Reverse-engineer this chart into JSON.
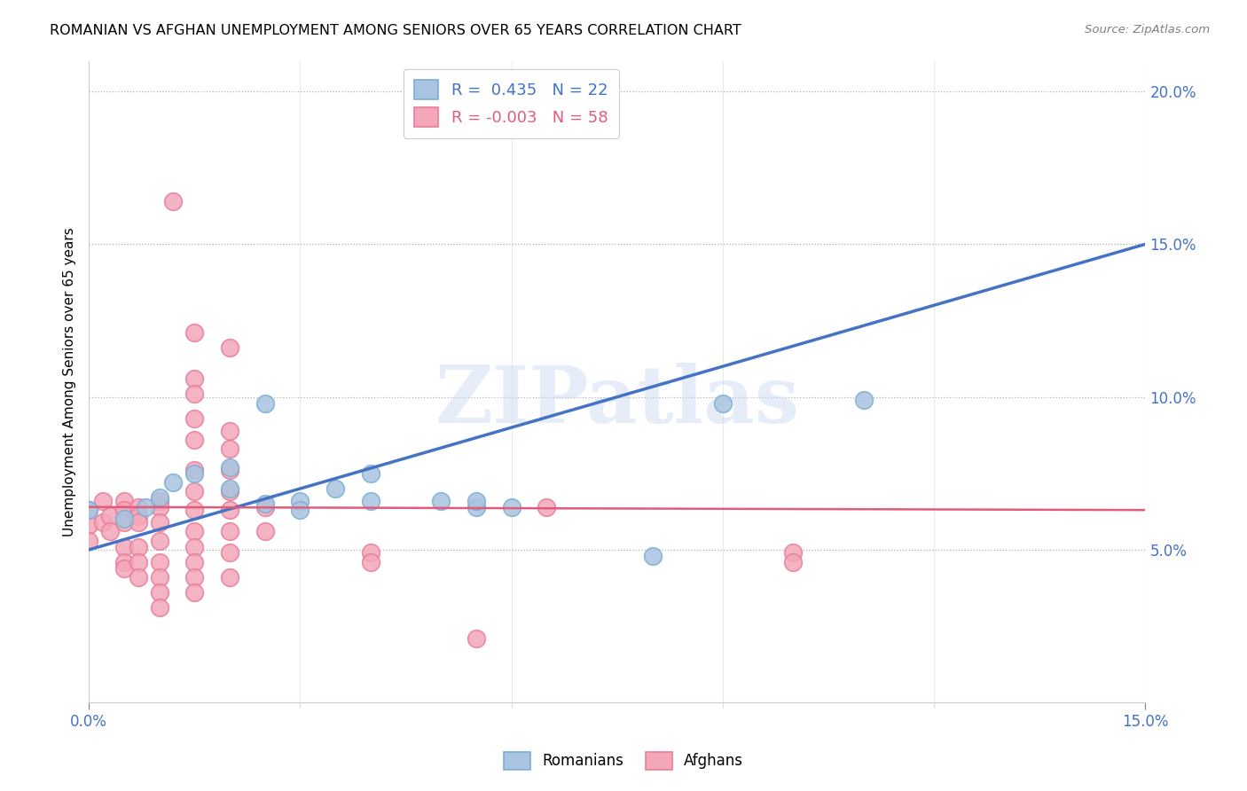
{
  "title": "ROMANIAN VS AFGHAN UNEMPLOYMENT AMONG SENIORS OVER 65 YEARS CORRELATION CHART",
  "source": "Source: ZipAtlas.com",
  "ylabel": "Unemployment Among Seniors over 65 years",
  "xlim": [
    0.0,
    0.15
  ],
  "ylim": [
    0.0,
    0.21
  ],
  "xticks_labeled": [
    0.0,
    0.15
  ],
  "xtick_labels": [
    "0.0%",
    "15.0%"
  ],
  "xticks_minor": [
    0.03,
    0.06,
    0.09,
    0.12
  ],
  "yticks_right": [
    0.05,
    0.1,
    0.15,
    0.2
  ],
  "ytick_right_labels": [
    "5.0%",
    "10.0%",
    "15.0%",
    "20.0%"
  ],
  "romanian_R": 0.435,
  "romanian_N": 22,
  "afghan_R": -0.003,
  "afghan_N": 58,
  "romanian_color": "#a8c4e0",
  "romanian_edge_color": "#7aafd4",
  "afghan_color": "#f4a7b9",
  "afghan_edge_color": "#e87d9a",
  "romanian_line_color": "#4472c4",
  "afghan_line_color": "#e05c7a",
  "watermark": "ZIPatlas",
  "romanian_points": [
    [
      0.0,
      0.063
    ],
    [
      0.005,
      0.06
    ],
    [
      0.008,
      0.064
    ],
    [
      0.01,
      0.067
    ],
    [
      0.012,
      0.072
    ],
    [
      0.015,
      0.075
    ],
    [
      0.02,
      0.07
    ],
    [
      0.02,
      0.077
    ],
    [
      0.025,
      0.098
    ],
    [
      0.025,
      0.065
    ],
    [
      0.03,
      0.066
    ],
    [
      0.03,
      0.063
    ],
    [
      0.035,
      0.07
    ],
    [
      0.04,
      0.075
    ],
    [
      0.04,
      0.066
    ],
    [
      0.05,
      0.066
    ],
    [
      0.055,
      0.064
    ],
    [
      0.055,
      0.066
    ],
    [
      0.06,
      0.064
    ],
    [
      0.08,
      0.048
    ],
    [
      0.09,
      0.098
    ],
    [
      0.11,
      0.099
    ]
  ],
  "afghan_points": [
    [
      0.0,
      0.063
    ],
    [
      0.0,
      0.058
    ],
    [
      0.0,
      0.053
    ],
    [
      0.002,
      0.066
    ],
    [
      0.002,
      0.059
    ],
    [
      0.003,
      0.061
    ],
    [
      0.003,
      0.056
    ],
    [
      0.005,
      0.066
    ],
    [
      0.005,
      0.063
    ],
    [
      0.005,
      0.059
    ],
    [
      0.005,
      0.051
    ],
    [
      0.005,
      0.046
    ],
    [
      0.005,
      0.044
    ],
    [
      0.007,
      0.064
    ],
    [
      0.007,
      0.061
    ],
    [
      0.007,
      0.059
    ],
    [
      0.007,
      0.051
    ],
    [
      0.007,
      0.046
    ],
    [
      0.007,
      0.041
    ],
    [
      0.01,
      0.066
    ],
    [
      0.01,
      0.064
    ],
    [
      0.01,
      0.059
    ],
    [
      0.01,
      0.053
    ],
    [
      0.01,
      0.046
    ],
    [
      0.01,
      0.041
    ],
    [
      0.01,
      0.036
    ],
    [
      0.01,
      0.031
    ],
    [
      0.012,
      0.164
    ],
    [
      0.015,
      0.121
    ],
    [
      0.015,
      0.106
    ],
    [
      0.015,
      0.101
    ],
    [
      0.015,
      0.093
    ],
    [
      0.015,
      0.086
    ],
    [
      0.015,
      0.076
    ],
    [
      0.015,
      0.069
    ],
    [
      0.015,
      0.063
    ],
    [
      0.015,
      0.056
    ],
    [
      0.015,
      0.051
    ],
    [
      0.015,
      0.046
    ],
    [
      0.015,
      0.041
    ],
    [
      0.015,
      0.036
    ],
    [
      0.02,
      0.116
    ],
    [
      0.02,
      0.089
    ],
    [
      0.02,
      0.083
    ],
    [
      0.02,
      0.076
    ],
    [
      0.02,
      0.069
    ],
    [
      0.02,
      0.063
    ],
    [
      0.02,
      0.056
    ],
    [
      0.02,
      0.049
    ],
    [
      0.02,
      0.041
    ],
    [
      0.025,
      0.064
    ],
    [
      0.025,
      0.056
    ],
    [
      0.04,
      0.049
    ],
    [
      0.04,
      0.046
    ],
    [
      0.055,
      0.021
    ],
    [
      0.065,
      0.064
    ],
    [
      0.1,
      0.049
    ],
    [
      0.1,
      0.046
    ]
  ],
  "romanian_trendline": [
    [
      0.0,
      0.05
    ],
    [
      0.15,
      0.15
    ]
  ],
  "afghan_trendline": [
    [
      0.0,
      0.064
    ],
    [
      0.15,
      0.063
    ]
  ]
}
